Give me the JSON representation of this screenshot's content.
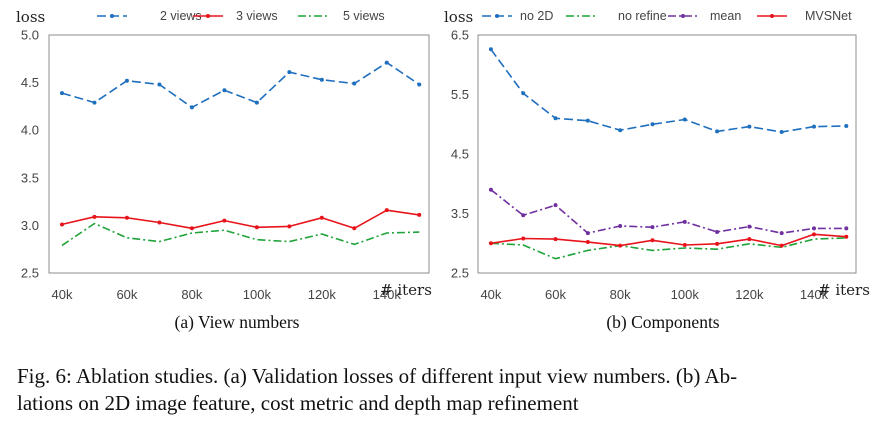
{
  "caption": {
    "line1": "Fig. 6: Ablation studies. (a) Validation losses of different input view numbers. (b) Ab-",
    "line2": "lations on 2D image feature, cost metric and depth map refinement"
  },
  "chart_data": [
    {
      "type": "line",
      "subtitle": "(a) View numbers",
      "ylabel": "loss",
      "xlabel": "# iters",
      "ylim": [
        2.5,
        5.0
      ],
      "yticks": [
        "2.5",
        "3.0",
        "3.5",
        "4.0",
        "4.5",
        "5.0"
      ],
      "ytick_values": [
        2.5,
        3.0,
        3.5,
        4.0,
        4.5,
        5.0
      ],
      "xticks": [
        "40k",
        "60k",
        "80k",
        "100k",
        "120k",
        "140k"
      ],
      "xtick_values": [
        40,
        60,
        80,
        100,
        120,
        140
      ],
      "x": [
        40,
        50,
        60,
        70,
        80,
        90,
        100,
        110,
        120,
        130,
        140,
        150
      ],
      "legend_position": "top",
      "grid": false,
      "series": [
        {
          "name": "2 views",
          "color": "#1f6fbf",
          "style": "dash",
          "marker": "dot",
          "values": [
            4.39,
            4.29,
            4.52,
            4.48,
            4.24,
            4.42,
            4.29,
            4.61,
            4.53,
            4.49,
            4.71,
            4.48
          ]
        },
        {
          "name": "3 views",
          "color": "#e8141b",
          "style": "solid",
          "marker": "dot",
          "values": [
            3.01,
            3.09,
            3.08,
            3.03,
            2.97,
            3.05,
            2.98,
            2.99,
            3.08,
            2.97,
            3.16,
            3.11
          ]
        },
        {
          "name": "5 views",
          "color": "#1fa33a",
          "style": "dashdot",
          "marker": "none",
          "values": [
            2.79,
            3.02,
            2.87,
            2.83,
            2.92,
            2.95,
            2.85,
            2.83,
            2.91,
            2.8,
            2.92,
            2.93
          ]
        }
      ]
    },
    {
      "type": "line",
      "subtitle": "(b) Components",
      "ylabel": "loss",
      "xlabel": "# iters",
      "ylim": [
        2.5,
        6.5
      ],
      "yticks": [
        "2.5",
        "3.5",
        "4.5",
        "5.5",
        "6.5"
      ],
      "ytick_values": [
        2.5,
        3.5,
        4.5,
        5.5,
        6.5
      ],
      "xticks": [
        "40k",
        "60k",
        "80k",
        "100k",
        "120k",
        "140k"
      ],
      "xtick_values": [
        40,
        60,
        80,
        100,
        120,
        140
      ],
      "x": [
        40,
        50,
        60,
        70,
        80,
        90,
        100,
        110,
        120,
        130,
        140,
        150
      ],
      "legend_position": "top",
      "grid": false,
      "series": [
        {
          "name": "no 2D",
          "color": "#1f6fbf",
          "style": "dash",
          "marker": "dot",
          "values": [
            6.26,
            5.52,
            5.1,
            5.06,
            4.9,
            5.0,
            5.08,
            4.88,
            4.96,
            4.87,
            4.96,
            4.97
          ]
        },
        {
          "name": "no refine",
          "color": "#1fa33a",
          "style": "dashdot",
          "marker": "none",
          "values": [
            3.0,
            2.97,
            2.74,
            2.88,
            2.96,
            2.88,
            2.92,
            2.9,
            2.99,
            2.93,
            3.07,
            3.09
          ]
        },
        {
          "name": "mean",
          "color": "#7030a0",
          "style": "dashdot",
          "marker": "dot",
          "values": [
            3.9,
            3.47,
            3.64,
            3.17,
            3.29,
            3.27,
            3.36,
            3.19,
            3.28,
            3.17,
            3.25,
            3.25
          ]
        },
        {
          "name": "MVSNet",
          "color": "#e8141b",
          "style": "solid",
          "marker": "dot",
          "values": [
            3.0,
            3.08,
            3.07,
            3.02,
            2.96,
            3.05,
            2.97,
            2.99,
            3.07,
            2.96,
            3.15,
            3.11
          ]
        }
      ]
    }
  ]
}
